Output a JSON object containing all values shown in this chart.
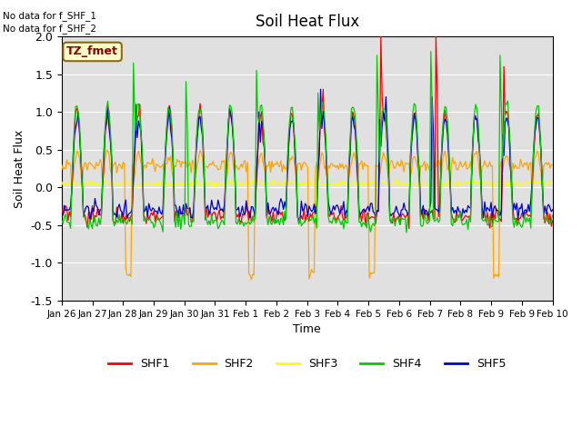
{
  "title": "Soil Heat Flux",
  "ylabel": "Soil Heat Flux",
  "xlabel": "Time",
  "ylim": [
    -1.5,
    2.0
  ],
  "yticks": [
    -1.5,
    -1.0,
    -0.5,
    0.0,
    0.5,
    1.0,
    1.5,
    2.0
  ],
  "xtick_labels": [
    "Jan 26",
    "Jan 27",
    "Jan 28",
    "Jan 29",
    "Jan 30",
    "Jan 31",
    "Feb 1",
    "Feb 2",
    "Feb 3",
    "Feb 4",
    "Feb 5",
    "Feb 6",
    "Feb 7",
    "Feb 8",
    "Feb 9",
    "Feb 9",
    "Feb 10"
  ],
  "annotation1": "No data for f_SHF_1",
  "annotation2": "No data for f_SHF_2",
  "box_label": "TZ_fmet",
  "colors": {
    "SHF1": "#ff0000",
    "SHF2": "#ffa500",
    "SHF3": "#ffff00",
    "SHF4": "#00cc00",
    "SHF5": "#0000cc"
  },
  "legend_labels": [
    "SHF1",
    "SHF2",
    "SHF3",
    "SHF4",
    "SHF5"
  ],
  "bg_color": "#e0e0e0",
  "fig_bg": "#ffffff",
  "grid_color": "#ffffff",
  "n_days": 16,
  "n_points": 384
}
